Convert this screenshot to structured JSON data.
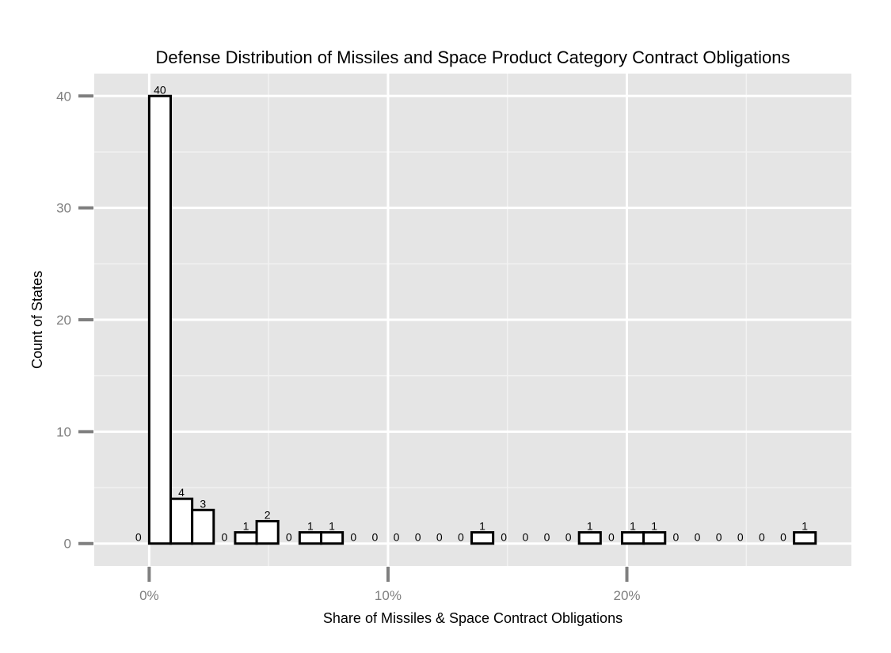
{
  "colors": {
    "panel": "#e5e5e5",
    "major_grid": "#ffffff",
    "minor_grid": "#f2f2f2",
    "bar_fill": "#ffffff",
    "bar_stroke": "#000000",
    "tick": "#7f7f7f"
  },
  "chart_data": {
    "type": "bar",
    "title": "Defense Distribution of Missiles and Space Product Category Contract Obligations",
    "xlabel": "Share of Missiles & Space Contract Obligations",
    "ylabel": "Count of States",
    "x_tick_labels": [
      "0%",
      "10%",
      "20%"
    ],
    "x_tick_values": [
      0,
      10,
      20
    ],
    "y_tick_labels": [
      "0",
      "10",
      "20",
      "30",
      "40"
    ],
    "y_tick_values": [
      0,
      10,
      20,
      30,
      40
    ],
    "xlim": [
      -2.3,
      29.4
    ],
    "ylim": [
      -2,
      42
    ],
    "grid": true,
    "bin_width": 0.9,
    "bin_centers": [
      -0.45,
      0.45,
      1.35,
      2.25,
      3.15,
      4.05,
      4.95,
      5.85,
      6.75,
      7.65,
      8.55,
      9.45,
      10.35,
      11.25,
      12.15,
      13.05,
      13.95,
      14.85,
      15.75,
      16.65,
      17.55,
      18.45,
      19.35,
      20.25,
      21.15,
      22.05,
      22.95,
      23.85,
      24.75,
      25.65,
      26.55,
      27.45
    ],
    "values": [
      0,
      40,
      4,
      3,
      0,
      1,
      2,
      0,
      1,
      1,
      0,
      0,
      0,
      0,
      0,
      0,
      1,
      0,
      0,
      0,
      0,
      1,
      0,
      1,
      1,
      0,
      0,
      0,
      0,
      0,
      0,
      1
    ]
  }
}
